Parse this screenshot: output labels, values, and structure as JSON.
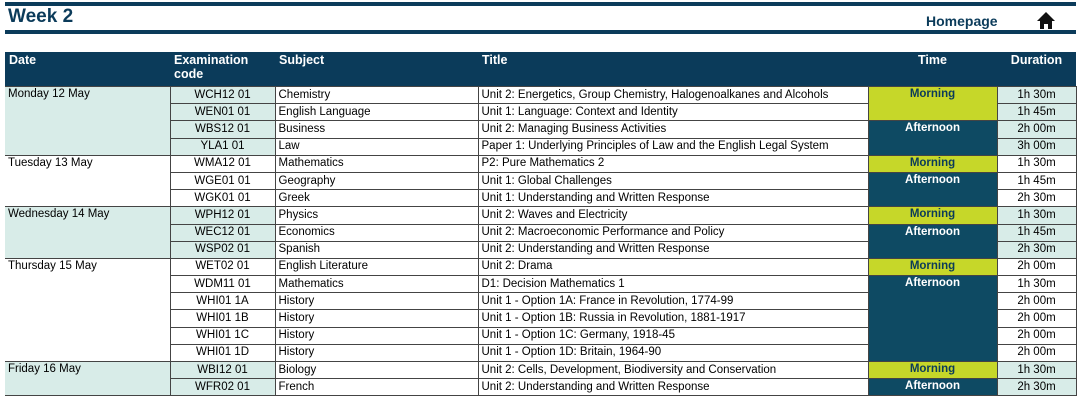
{
  "header": {
    "title": "Week 2",
    "link": "Homepage"
  },
  "table": {
    "columns": [
      "Date",
      "Examination code",
      "Subject",
      "Title",
      "Time",
      "Duration"
    ],
    "days": [
      {
        "date": "Monday 12 May",
        "sessions": [
          {
            "label": "Morning",
            "exams": [
              {
                "code": "WCH12 01",
                "subject": "Chemistry",
                "title": "Unit 2: Energetics, Group Chemistry, Halogenoalkanes and Alcohols",
                "duration": "1h 30m"
              },
              {
                "code": "WEN01 01",
                "subject": "English Language",
                "title": "Unit 1: Language: Context and Identity",
                "duration": "1h 45m"
              }
            ]
          },
          {
            "label": "Afternoon",
            "exams": [
              {
                "code": "WBS12 01",
                "subject": "Business",
                "title": "Unit 2: Managing Business Activities",
                "duration": "2h 00m"
              },
              {
                "code": "YLA1 01",
                "subject": "Law",
                "title": "Paper 1: Underlying Principles of Law and the English Legal System",
                "duration": "3h 00m"
              }
            ]
          }
        ]
      },
      {
        "date": "Tuesday 13 May",
        "sessions": [
          {
            "label": "Morning",
            "exams": [
              {
                "code": "WMA12 01",
                "subject": "Mathematics",
                "title": "P2: Pure Mathematics 2",
                "duration": "1h 30m"
              }
            ]
          },
          {
            "label": "Afternoon",
            "exams": [
              {
                "code": "WGE01 01",
                "subject": "Geography",
                "title": "Unit 1: Global Challenges",
                "duration": "1h 45m"
              },
              {
                "code": "WGK01 01",
                "subject": "Greek",
                "title": "Unit 1: Understanding and Written Response",
                "duration": "2h 30m"
              }
            ]
          }
        ]
      },
      {
        "date": "Wednesday 14 May",
        "sessions": [
          {
            "label": "Morning",
            "exams": [
              {
                "code": "WPH12 01",
                "subject": "Physics",
                "title": "Unit 2: Waves and Electricity",
                "duration": "1h 30m"
              }
            ]
          },
          {
            "label": "Afternoon",
            "exams": [
              {
                "code": "WEC12 01",
                "subject": "Economics",
                "title": "Unit 2: Macroeconomic Performance and Policy",
                "duration": "1h 45m"
              },
              {
                "code": "WSP02 01",
                "subject": "Spanish",
                "title": "Unit 2: Understanding and Written Response",
                "duration": "2h 30m"
              }
            ]
          }
        ]
      },
      {
        "date": "Thursday 15 May",
        "sessions": [
          {
            "label": "Morning",
            "exams": [
              {
                "code": "WET02 01",
                "subject": "English Literature",
                "title": "Unit 2: Drama",
                "duration": "2h 00m"
              }
            ]
          },
          {
            "label": "Afternoon",
            "exams": [
              {
                "code": "WDM11 01",
                "subject": "Mathematics",
                "title": "D1: Decision Mathematics 1",
                "duration": "1h 30m"
              },
              {
                "code": "WHI01 1A",
                "subject": "History",
                "title": "Unit 1 - Option 1A: France in Revolution, 1774-99",
                "duration": "2h 00m"
              },
              {
                "code": "WHI01 1B",
                "subject": "History",
                "title": "Unit 1 - Option 1B: Russia in Revolution, 1881-1917",
                "duration": "2h 00m"
              },
              {
                "code": "WHI01 1C",
                "subject": "History",
                "title": "Unit 1 - Option 1C: Germany, 1918-45",
                "duration": "2h 00m"
              },
              {
                "code": "WHI01 1D",
                "subject": "History",
                "title": "Unit 1 - Option 1D: Britain, 1964-90",
                "duration": "2h 00m"
              }
            ]
          }
        ]
      },
      {
        "date": "Friday 16 May",
        "sessions": [
          {
            "label": "Morning",
            "exams": [
              {
                "code": "WBI12 01",
                "subject": "Biology",
                "title": "Unit 2: Cells, Development, Biodiversity and Conservation",
                "duration": "1h 30m"
              }
            ]
          },
          {
            "label": "Afternoon",
            "exams": [
              {
                "code": "WFR02 01",
                "subject": "French",
                "title": "Unit 2: Understanding and Written Response",
                "duration": "2h 30m"
              }
            ]
          }
        ]
      }
    ]
  }
}
